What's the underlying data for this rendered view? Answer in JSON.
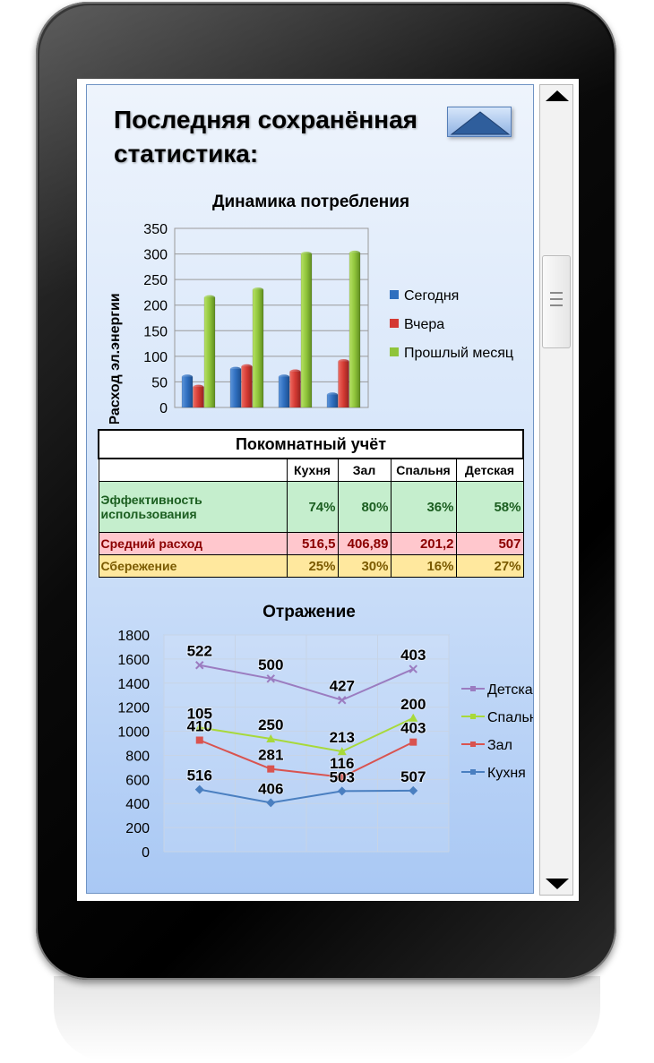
{
  "page": {
    "title_line1": "Последняя сохранённая",
    "title_line2": "статистика:"
  },
  "colors": {
    "today": "#2f6fbf",
    "yesterday": "#d43a33",
    "last_month": "#8fc43a",
    "kids": "#9b7cc0",
    "bedroom": "#a8d93a",
    "hall": "#d9534f",
    "kitchen": "#4a7fc0"
  },
  "chart_data": [
    {
      "type": "bar",
      "title": "Динамика потребления",
      "xlabel": "",
      "ylabel": "Расход эл.энергии",
      "ylim": [
        0,
        350
      ],
      "yticks": [
        0,
        50,
        100,
        150,
        200,
        250,
        300,
        350
      ],
      "categories": [
        "",
        "",
        "",
        ""
      ],
      "series": [
        {
          "name": "Сегодня",
          "values": [
            60,
            75,
            60,
            25
          ]
        },
        {
          "name": "Вчера",
          "values": [
            40,
            80,
            70,
            90
          ]
        },
        {
          "name": "Прошлый месяц",
          "values": [
            215,
            230,
            300,
            302
          ]
        }
      ],
      "legend": "right",
      "grid": true
    },
    {
      "type": "line",
      "title": "Отражение",
      "ylim": [
        0,
        1800
      ],
      "yticks": [
        0,
        200,
        400,
        600,
        800,
        1000,
        1200,
        1400,
        1600,
        1800
      ],
      "x": [
        1,
        2,
        3,
        4
      ],
      "series": [
        {
          "name": "Детская",
          "values": [
            1549,
            1437,
            1259,
            1517
          ],
          "labels": [
            "522",
            "500",
            "427",
            "403"
          ]
        },
        {
          "name": "Спальня",
          "values": [
            1031,
            937,
            832,
            1110
          ],
          "labels": [
            "105",
            "250",
            "213",
            "200"
          ]
        },
        {
          "name": "Зал",
          "values": [
            926,
            687,
            619,
            910
          ],
          "labels": [
            "410",
            "281",
            "116",
            "403"
          ]
        },
        {
          "name": "Кухня",
          "values": [
            516,
            406,
            503,
            507
          ],
          "labels": [
            "516",
            "406",
            "503",
            "507"
          ]
        }
      ],
      "legend": "right",
      "grid": true
    }
  ],
  "table": {
    "caption": "Покомнатный учёт",
    "columns": [
      "",
      "Кухня",
      "Зал",
      "Спальня",
      "Детская"
    ],
    "rows": [
      {
        "label": "Эффективность использования",
        "values": [
          "74%",
          "80%",
          "36%",
          "58%"
        ]
      },
      {
        "label": "Средний расход",
        "values": [
          "516,5",
          "406,89",
          "201,2",
          "507"
        ]
      },
      {
        "label": "Сбережение",
        "values": [
          "25%",
          "30%",
          "16%",
          "27%"
        ]
      }
    ]
  }
}
